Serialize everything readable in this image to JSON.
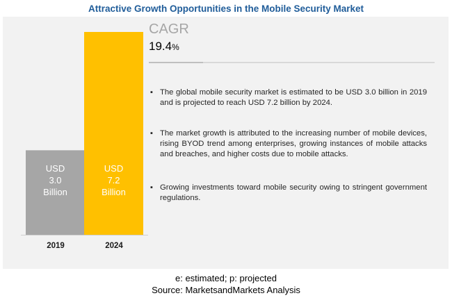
{
  "title": "Attractive Growth Opportunities in the Mobile Security Market",
  "cagr": {
    "label": "CAGR",
    "value": "19.4",
    "unit": "%"
  },
  "bullets": [
    "The global mobile security market is estimated to be USD 3.0 billion in 2019 and is projected to reach USD 7.2 billion by 2024.",
    "The market growth is attributed to the increasing number of mobile devices, rising BYOD trend among enterprises, growing instances of mobile attacks and breaches, and higher costs due to mobile attacks.",
    "Growing investments toward mobile security owing to stringent government regulations."
  ],
  "bar_labels": [
    {
      "currency": "USD",
      "amount": "3.0",
      "unit": "Billion"
    },
    {
      "currency": "USD",
      "amount": "7.2",
      "unit": "Billion"
    }
  ],
  "footer": {
    "note": "e: estimated; p: projected",
    "source": "Source: MarketsandMarkets Analysis"
  },
  "colors": {
    "bar_2019": "#a6a6a6",
    "bar_2024": "#ffc000",
    "title": "#1f5c99",
    "panel": "#f2f2f2"
  },
  "chart_data": {
    "type": "bar",
    "categories": [
      "2019",
      "2024"
    ],
    "values": [
      3.0,
      7.2
    ],
    "ylim": [
      0,
      7.2
    ],
    "title": "Attractive Growth Opportunities in the Mobile Security Market",
    "xlabel": "",
    "ylabel": ""
  }
}
